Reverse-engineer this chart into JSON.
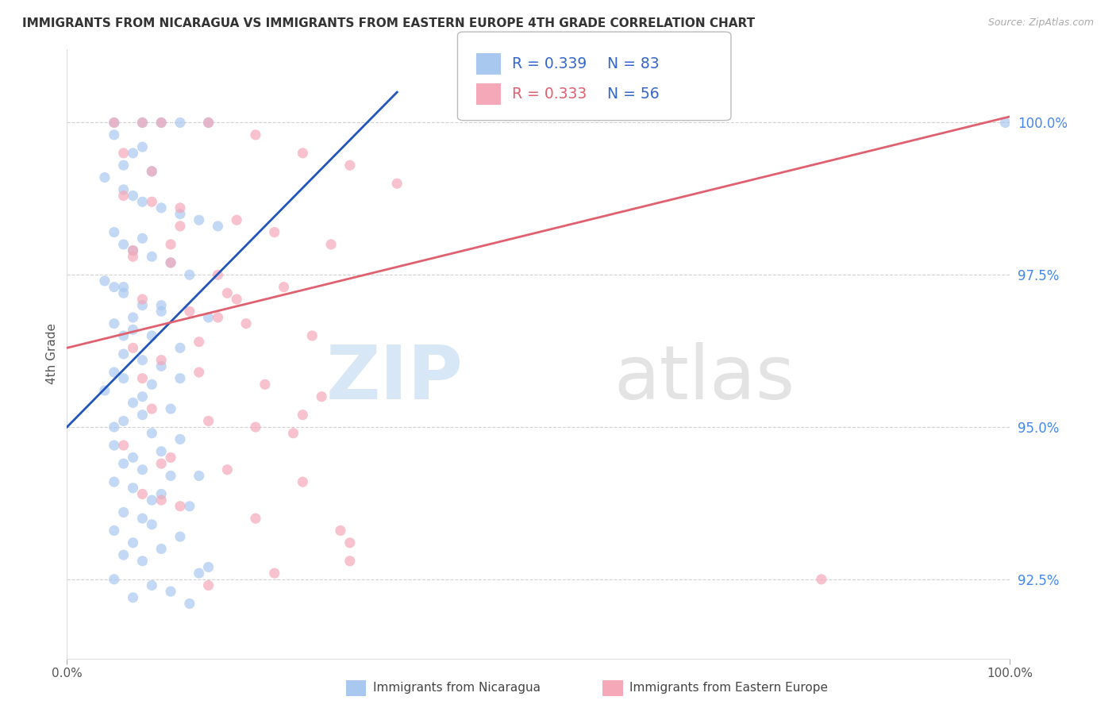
{
  "title": "IMMIGRANTS FROM NICARAGUA VS IMMIGRANTS FROM EASTERN EUROPE 4TH GRADE CORRELATION CHART",
  "source": "Source: ZipAtlas.com",
  "ylabel": "4th Grade",
  "y_tick_labels": [
    "92.5%",
    "95.0%",
    "97.5%",
    "100.0%"
  ],
  "y_tick_values": [
    92.5,
    95.0,
    97.5,
    100.0
  ],
  "xlim": [
    0.0,
    100.0
  ],
  "ylim": [
    91.2,
    101.2
  ],
  "blue_color": "#A8C8F0",
  "pink_color": "#F4A8B8",
  "blue_line_color": "#2255BB",
  "pink_line_color": "#E06070",
  "series1_label": "Immigrants from Nicaragua",
  "series2_label": "Immigrants from Eastern Europe",
  "legend_r1": "R = 0.339",
  "legend_n1": "N = 83",
  "legend_r2": "R = 0.333",
  "legend_n2": "N = 56",
  "blue_trend": [
    0.0,
    35.0,
    95.0,
    100.5
  ],
  "pink_trend": [
    0.0,
    100.0,
    96.3,
    100.1
  ],
  "watermark_text": "ZIPatlas",
  "blue_scatter_x": [
    0.5,
    0.8,
    1.0,
    1.2,
    1.5,
    0.5,
    0.8,
    0.7,
    0.6,
    0.9,
    0.4,
    0.6,
    0.7,
    0.8,
    1.0,
    1.2,
    1.4,
    1.6,
    0.5,
    0.6,
    0.7,
    0.9,
    1.1,
    1.3,
    0.4,
    0.5,
    0.6,
    0.8,
    1.0,
    1.5,
    0.5,
    0.7,
    0.9,
    1.2,
    0.6,
    0.8,
    1.0,
    0.5,
    0.6,
    0.9,
    0.4,
    0.7,
    1.1,
    0.8,
    0.6,
    0.5,
    0.9,
    1.2,
    1.0,
    0.7,
    0.6,
    0.8,
    1.4,
    0.5,
    0.7,
    1.0,
    1.3,
    0.6,
    0.8,
    0.9,
    0.5,
    1.2,
    0.7,
    1.0,
    0.6,
    0.8,
    1.5,
    0.5,
    0.9,
    1.1,
    0.7,
    1.3,
    0.6,
    1.0,
    0.8,
    0.5,
    0.9,
    1.2,
    0.7,
    1.1,
    0.6,
    1.4,
    0.8
  ],
  "blue_scatter_y": [
    100.0,
    100.0,
    100.0,
    100.0,
    100.0,
    99.8,
    99.6,
    99.5,
    99.3,
    99.2,
    99.1,
    98.9,
    98.8,
    98.7,
    98.6,
    98.5,
    98.4,
    98.3,
    98.2,
    98.0,
    97.9,
    97.8,
    97.7,
    97.5,
    97.4,
    97.3,
    97.2,
    97.0,
    96.9,
    96.8,
    96.7,
    96.6,
    96.5,
    96.3,
    96.2,
    96.1,
    96.0,
    95.9,
    95.8,
    95.7,
    95.6,
    95.4,
    95.3,
    95.2,
    95.1,
    95.0,
    94.9,
    94.8,
    94.6,
    94.5,
    94.4,
    94.3,
    94.2,
    94.1,
    94.0,
    93.9,
    93.7,
    93.6,
    93.5,
    93.4,
    93.3,
    93.2,
    93.1,
    93.0,
    92.9,
    92.8,
    92.7,
    92.5,
    92.4,
    92.3,
    92.2,
    92.1,
    96.5,
    97.0,
    95.5,
    94.7,
    93.8,
    95.8,
    96.8,
    94.2,
    97.3,
    92.6,
    98.1
  ],
  "pink_scatter_x": [
    0.5,
    0.8,
    1.0,
    1.5,
    2.0,
    2.5,
    3.0,
    3.5,
    0.6,
    0.9,
    1.2,
    1.8,
    2.2,
    2.8,
    0.7,
    1.1,
    1.6,
    2.3,
    0.8,
    1.3,
    1.9,
    2.6,
    0.7,
    1.0,
    1.4,
    2.1,
    2.7,
    0.9,
    1.5,
    2.4,
    0.6,
    1.1,
    1.7,
    2.5,
    0.8,
    1.2,
    2.0,
    2.9,
    3.0,
    2.2,
    1.5,
    1.0,
    0.7,
    0.9,
    1.2,
    1.8,
    0.8,
    1.4,
    2.0,
    3.0,
    0.6,
    1.1,
    1.6,
    2.5,
    1.0,
    1.7
  ],
  "pink_scatter_y": [
    100.0,
    100.0,
    100.0,
    100.0,
    99.8,
    99.5,
    99.3,
    99.0,
    98.8,
    98.7,
    98.6,
    98.4,
    98.2,
    98.0,
    97.9,
    97.7,
    97.5,
    97.3,
    97.1,
    96.9,
    96.7,
    96.5,
    96.3,
    96.1,
    95.9,
    95.7,
    95.5,
    95.3,
    95.1,
    94.9,
    94.7,
    94.5,
    94.3,
    94.1,
    93.9,
    93.7,
    93.5,
    93.3,
    92.8,
    92.6,
    92.4,
    93.8,
    97.8,
    99.2,
    98.3,
    97.1,
    95.8,
    96.4,
    95.0,
    93.1,
    99.5,
    98.0,
    96.8,
    95.2,
    94.4,
    97.2
  ]
}
